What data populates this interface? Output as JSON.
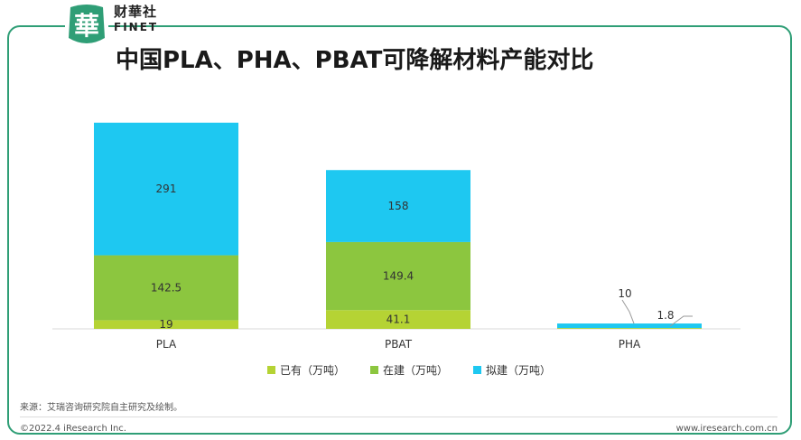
{
  "brand": {
    "seal_glyph": "華",
    "name_cn": "财華社",
    "name_en": "FINET"
  },
  "title": "中国PLA、PHA、PBAT可降解材料产能对比",
  "chart_data": {
    "type": "bar",
    "stacked": true,
    "categories": [
      "PLA",
      "PBAT",
      "PHA"
    ],
    "series": [
      {
        "name": "已有（万吨）",
        "color": "#b5d334",
        "values": [
          19,
          41.1,
          1.8
        ],
        "labels": [
          "19",
          "41.1",
          "1.8"
        ]
      },
      {
        "name": "在建（万吨）",
        "color": "#8cc63f",
        "values": [
          142.5,
          149.4,
          0
        ],
        "labels": [
          "142.5",
          "149.4",
          ""
        ]
      },
      {
        "name": "拟建（万吨）",
        "color": "#1ec8f1",
        "values": [
          291,
          158,
          10
        ],
        "labels": [
          "291",
          "158",
          "10"
        ]
      }
    ],
    "ylim": [
      0,
      460
    ],
    "legend_position": "bottom",
    "grid": false
  },
  "source": "来源：艾瑞咨询研究院自主研究及绘制。",
  "footer": {
    "copyright": "©2022.4 iResearch Inc.",
    "site": "www.iresearch.com.cn"
  }
}
